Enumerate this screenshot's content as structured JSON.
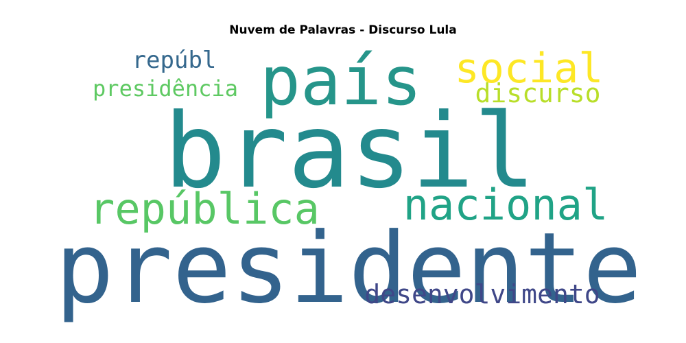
{
  "chart_data": {
    "type": "wordcloud",
    "title": "Nuvem de Palavras - Discurso Lula",
    "words": [
      {
        "text": "brasil",
        "color": "#238a8d"
      },
      {
        "text": "presidente",
        "color": "#33638d"
      },
      {
        "text": "país",
        "color": "#26958a"
      },
      {
        "text": "nacional",
        "color": "#20a386"
      },
      {
        "text": "república",
        "color": "#58c765"
      },
      {
        "text": "social",
        "color": "#fde725"
      },
      {
        "text": "discurso",
        "color": "#b8de29"
      },
      {
        "text": "desenvolvimento",
        "color": "#3f4788"
      },
      {
        "text": "presidência",
        "color": "#5ec962"
      },
      {
        "text": "repúbl",
        "color": "#35688d"
      }
    ]
  }
}
